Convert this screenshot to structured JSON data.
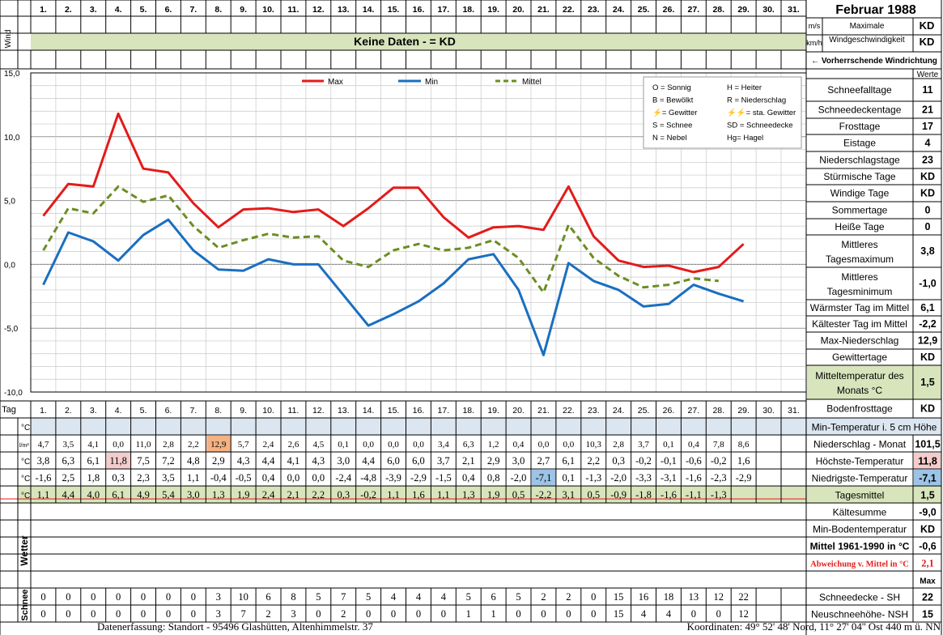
{
  "header": {
    "title": "Februar 1988",
    "wind_label": "Wind",
    "unit_ms": "m/s",
    "unit_kmh": "km/h",
    "max_wind_label_1": "Maximale",
    "max_wind_label_2": "Windgeschwindigkeit",
    "max_wind_ms": "KD",
    "max_wind_kmh": "KD",
    "no_data_banner": "Keine Daten -  = KD",
    "wind_direction_label": "← Vorherrschende Windrichtung"
  },
  "days": [
    "1.",
    "2.",
    "3.",
    "4.",
    "5.",
    "6.",
    "7.",
    "8.",
    "9.",
    "10.",
    "11.",
    "12.",
    "13.",
    "14.",
    "15.",
    "16.",
    "17.",
    "18.",
    "19.",
    "20.",
    "21.",
    "22.",
    "23.",
    "24.",
    "25.",
    "26.",
    "27.",
    "28.",
    "29.",
    "30.",
    "31."
  ],
  "legend_box": [
    [
      "O = Sonnig",
      "H = Heiter"
    ],
    [
      "B = Bewölkt",
      "R = Niederschlag"
    ],
    [
      "⚡= Gewitter",
      "⚡⚡= sta. Gewitter"
    ],
    [
      "S = Schnee",
      "SD = Schneedecke"
    ],
    [
      "N = Nebel",
      "Hg= Hagel"
    ]
  ],
  "chart_data": {
    "type": "line",
    "x": [
      1,
      2,
      3,
      4,
      5,
      6,
      7,
      8,
      9,
      10,
      11,
      12,
      13,
      14,
      15,
      16,
      17,
      18,
      19,
      20,
      21,
      22,
      23,
      24,
      25,
      26,
      27,
      28,
      29
    ],
    "series": [
      {
        "name": "Max",
        "color": "#e31b1b",
        "style": "solid",
        "values": [
          3.8,
          6.3,
          6.1,
          11.8,
          7.5,
          7.2,
          4.8,
          2.9,
          4.3,
          4.4,
          4.1,
          4.3,
          3.0,
          4.4,
          6.0,
          6.0,
          3.7,
          2.1,
          2.9,
          3.0,
          2.7,
          6.1,
          2.2,
          0.3,
          -0.2,
          -0.1,
          -0.6,
          -0.2,
          1.6
        ]
      },
      {
        "name": "Min",
        "color": "#1a6fc0",
        "style": "solid",
        "values": [
          -1.6,
          2.5,
          1.8,
          0.3,
          2.3,
          3.5,
          1.1,
          -0.4,
          -0.5,
          0.4,
          0.0,
          0.0,
          -2.4,
          -4.8,
          -3.9,
          -2.9,
          -1.5,
          0.4,
          0.8,
          -2.0,
          -7.1,
          0.1,
          -1.3,
          -2.0,
          -3.3,
          -3.1,
          -1.6,
          -2.3,
          -2.9
        ]
      },
      {
        "name": "Mittel",
        "color": "#6b8e23",
        "style": "dashed",
        "values": [
          1.1,
          4.4,
          4.0,
          6.1,
          4.9,
          5.4,
          3.0,
          1.3,
          1.9,
          2.4,
          2.1,
          2.2,
          0.3,
          -0.2,
          1.1,
          1.6,
          1.1,
          1.3,
          1.9,
          0.5,
          -2.2,
          3.1,
          0.5,
          -0.9,
          -1.8,
          -1.6,
          -1.1,
          -1.3,
          null
        ]
      }
    ],
    "y_ticks": [
      "15,0",
      "10,0",
      "5,0",
      "0,0",
      "-5,0",
      "-10,0"
    ],
    "ylim": [
      -10,
      15
    ],
    "xlim": [
      0,
      31
    ],
    "grid": true,
    "legend_position": "top"
  },
  "table": {
    "tag_label": "Tag",
    "unit_celsius": "°C",
    "unit_precip": "l/m²",
    "precip": [
      "4,7",
      "3,5",
      "4,1",
      "0,0",
      "11,0",
      "2,8",
      "2,2",
      "12,9",
      "5,7",
      "2,4",
      "2,6",
      "4,5",
      "0,1",
      "0,0",
      "0,0",
      "0,0",
      "3,4",
      "6,3",
      "1,2",
      "0,4",
      "0,0",
      "0,0",
      "10,3",
      "2,8",
      "3,7",
      "0,1",
      "0,4",
      "7,8",
      "8,6"
    ],
    "max": [
      "3,8",
      "6,3",
      "6,1",
      "11,8",
      "7,5",
      "7,2",
      "4,8",
      "2,9",
      "4,3",
      "4,4",
      "4,1",
      "4,3",
      "3,0",
      "4,4",
      "6,0",
      "6,0",
      "3,7",
      "2,1",
      "2,9",
      "3,0",
      "2,7",
      "6,1",
      "2,2",
      "0,3",
      "-0,2",
      "-0,1",
      "-0,6",
      "-0,2",
      "1,6"
    ],
    "min": [
      "-1,6",
      "2,5",
      "1,8",
      "0,3",
      "2,3",
      "3,5",
      "1,1",
      "-0,4",
      "-0,5",
      "0,4",
      "0,0",
      "0,0",
      "-2,4",
      "-4,8",
      "-3,9",
      "-2,9",
      "-1,5",
      "0,4",
      "0,8",
      "-2,0",
      "-7,1",
      "0,1",
      "-1,3",
      "-2,0",
      "-3,3",
      "-3,1",
      "-1,6",
      "-2,3",
      "-2,9"
    ],
    "mean": [
      "1,1",
      "4,4",
      "4,0",
      "6,1",
      "4,9",
      "5,4",
      "3,0",
      "1,3",
      "1,9",
      "2,4",
      "2,1",
      "2,2",
      "0,3",
      "-0,2",
      "1,1",
      "1,6",
      "1,1",
      "1,3",
      "1,9",
      "0,5",
      "-2,2",
      "3,1",
      "0,5",
      "-0,9",
      "-1,8",
      "-1,6",
      "-1,1",
      "-1,3"
    ],
    "wetter_label": "Wetter",
    "schnee_label": "Schnee",
    "snow_sh": [
      "0",
      "0",
      "0",
      "0",
      "0",
      "0",
      "0",
      "3",
      "10",
      "6",
      "8",
      "5",
      "7",
      "5",
      "4",
      "4",
      "4",
      "5",
      "6",
      "5",
      "2",
      "2",
      "0",
      "15",
      "16",
      "18",
      "13",
      "12",
      "22"
    ],
    "snow_nsh": [
      "0",
      "0",
      "0",
      "0",
      "0",
      "0",
      "0",
      "3",
      "7",
      "2",
      "3",
      "0",
      "2",
      "0",
      "0",
      "0",
      "0",
      "1",
      "1",
      "0",
      "0",
      "0",
      "0",
      "15",
      "4",
      "4",
      "0",
      "0",
      "12"
    ],
    "highlight_colors": {
      "max_precip": "#f4b183",
      "max_temp": "#f4cccc",
      "min_temp": "#9dc3e6",
      "mean_row": "#d8e4bc",
      "mint_row": "#dce6f1"
    }
  },
  "stats": [
    {
      "label": "Werte",
      "value": ""
    },
    {
      "label": "Schneefalltage",
      "value": "11"
    },
    {
      "label": "Schneedeckentage",
      "value": "21"
    },
    {
      "label": "Frosttage",
      "value": "17"
    },
    {
      "label": "Eistage",
      "value": "4"
    },
    {
      "label": "Niederschlagstage",
      "value": "23"
    },
    {
      "label": "Stürmische Tage",
      "value": "KD"
    },
    {
      "label": "Windige Tage",
      "value": "KD"
    },
    {
      "label": "Sommertage",
      "value": "0"
    },
    {
      "label": "Heiße Tage",
      "value": "0"
    },
    {
      "label": "Mittleres Tagesmaximum",
      "value": "3,8"
    },
    {
      "label": "Mittleres Tagesminimum",
      "value": "-1,0"
    },
    {
      "label": "Wärmster Tag im Mittel",
      "value": "6,1"
    },
    {
      "label": "Kältester Tag im Mittel",
      "value": "-2,2"
    },
    {
      "label": "Max-Niederschlag",
      "value": "12,9"
    },
    {
      "label": "Gewittertage",
      "value": "KD"
    },
    {
      "label": "Mitteltemperatur des Monats °C",
      "value": "1,5"
    },
    {
      "label": "Bodenfrosttage",
      "value": "KD"
    }
  ],
  "right_table": [
    {
      "label": "Min-Temperatur i. 5 cm Höhe",
      "value": ""
    },
    {
      "label": "Niederschlag - Monat",
      "value": "101,5"
    },
    {
      "label": "Höchste-Temperatur",
      "value": "11,8"
    },
    {
      "label": "Niedrigste-Temperatur",
      "value": "-7,1"
    },
    {
      "label": "Tagesmittel",
      "value": "1,5"
    },
    {
      "label": "Kältesumme",
      "value": "-9,0"
    },
    {
      "label": "Min-Bodentemperatur",
      "value": "KD"
    },
    {
      "label": "Mittel 1961-1990 in °C",
      "value": "-0,6"
    },
    {
      "label": "Abweichung v. Mittel in °C",
      "value": "2,1"
    },
    {
      "label": "",
      "value": "Max"
    },
    {
      "label": "Schneedecke -   SH",
      "value": "22"
    },
    {
      "label": "Neuschneehöhe- NSH",
      "value": "15"
    }
  ],
  "footer": {
    "left": "Datenerfassung:  Standort -   95496  Glashütten, Altenhimmelstr. 37",
    "right": "Koordinaten:  49° 52' 48' Nord,  11° 27' 04'' Ost   440 m ü. NN"
  }
}
